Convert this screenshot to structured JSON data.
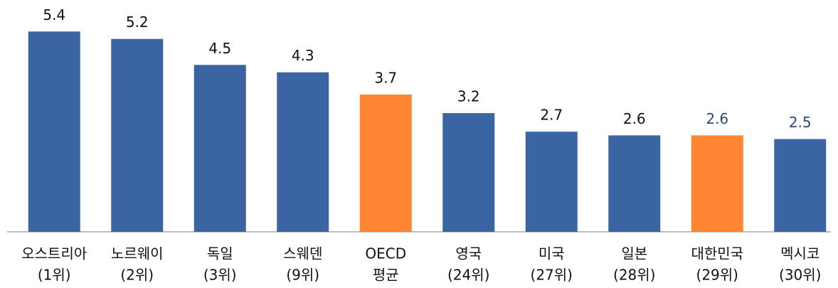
{
  "chart_data": {
    "type": "bar",
    "categories": [
      [
        "오스트리아",
        "(1위)"
      ],
      [
        "노르웨이",
        "(2위)"
      ],
      [
        "독일",
        "(3위)"
      ],
      [
        "스웨덴",
        "(9위)"
      ],
      [
        "OECD",
        "평균"
      ],
      [
        "영국",
        "(24위)"
      ],
      [
        "미국",
        "(27위)"
      ],
      [
        "일본",
        "(28위)"
      ],
      [
        "대한민국",
        "(29위)"
      ],
      [
        "멕시코",
        "(30위)"
      ]
    ],
    "values": [
      5.4,
      5.2,
      4.5,
      4.3,
      3.7,
      3.2,
      2.7,
      2.6,
      2.6,
      2.5
    ],
    "colors": [
      "#3a65a2",
      "#3a65a2",
      "#3a65a2",
      "#3a65a2",
      "#fd8533",
      "#3a65a2",
      "#3a65a2",
      "#3a65a2",
      "#fd8533",
      "#3a65a2"
    ],
    "label_colors": [
      "#111111",
      "#111111",
      "#111111",
      "#111111",
      "#111111",
      "#111111",
      "#111111",
      "#111111",
      "#2e4a6b",
      "#2e4a6b"
    ],
    "ylim": [
      0,
      6
    ]
  }
}
